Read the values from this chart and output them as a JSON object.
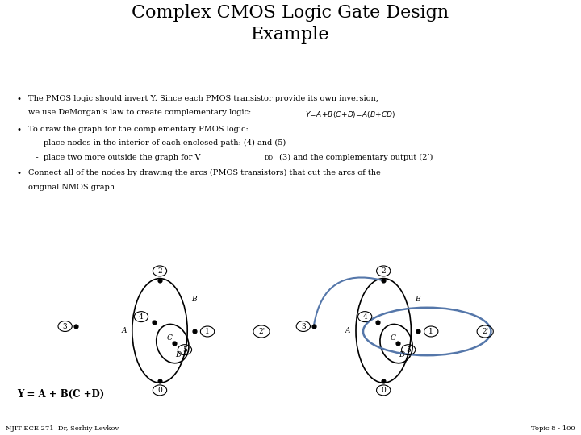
{
  "title": "Complex CMOS Logic Gate Design\nExample",
  "title_fontsize": 16,
  "bg_color": "#ffffff",
  "text_color": "#000000",
  "footer_left": "NJIT ECE 271  Dr, Serhiy Levkov",
  "footer_right": "Topic 8 - 100",
  "formula_y": "Y = A + B(C +D)",
  "bullet1_line1": "The PMOS logic should invert Y. Since each PMOS transistor provide its own inversion,",
  "bullet1_line2": "we use DeMorgan’s law to create complementary logic:",
  "bullet2_line1": "To draw the graph for the complementary PMOS logic:",
  "bullet2_line2": "   -  place nodes in the interior of each enclosed path: (4) and (5)",
  "bullet2_line3a": "   -  place two more outside the graph for V",
  "bullet2_line3b": "DD",
  "bullet2_line3c": " (3) and the complementary output (2’)",
  "bullet3_line1": "Connect all of the nodes by drawing the arcs (PMOS transistors) that cut the arcs of the",
  "bullet3_line2": "original NMOS graph"
}
